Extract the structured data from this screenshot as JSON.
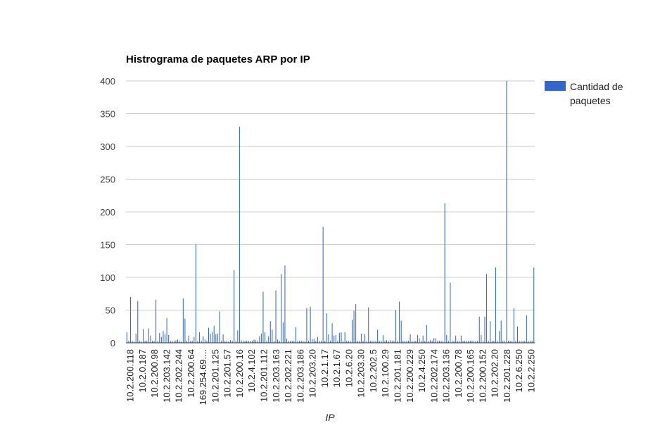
{
  "chart_data": {
    "type": "bar",
    "title": "Histrograma de paquetes ARP por IP",
    "xlabel": "IP",
    "ylabel": "",
    "ylim": [
      0,
      400
    ],
    "yticks": [
      0,
      50,
      100,
      150,
      200,
      250,
      300,
      350,
      400
    ],
    "grid": true,
    "legend_position": "right",
    "series": [
      {
        "name": "Cantidad de paquetes",
        "color": "#3366cc",
        "values": [
          16,
          3,
          70,
          3,
          2,
          14,
          64,
          3,
          2,
          21,
          3,
          3,
          22,
          11,
          3,
          3,
          66,
          3,
          15,
          9,
          18,
          13,
          38,
          12,
          3,
          3,
          3,
          4,
          5,
          3,
          2,
          68,
          37,
          3,
          11,
          3,
          3,
          9,
          151,
          3,
          16,
          3,
          10,
          5,
          3,
          23,
          14,
          17,
          26,
          13,
          14,
          48,
          3,
          13,
          3,
          3,
          2,
          4,
          3,
          111,
          3,
          19,
          330,
          4,
          3,
          3,
          3,
          3,
          3,
          3,
          5,
          4,
          3,
          10,
          14,
          78,
          16,
          3,
          10,
          33,
          20,
          3,
          80,
          5,
          3,
          105,
          31,
          118,
          6,
          3,
          3,
          3,
          3,
          24,
          3,
          3,
          3,
          3,
          3,
          53,
          3,
          55,
          6,
          6,
          3,
          9,
          3,
          3,
          177,
          3,
          45,
          13,
          3,
          30,
          11,
          12,
          3,
          15,
          16,
          3,
          16,
          3,
          3,
          3,
          35,
          49,
          59,
          3,
          3,
          14,
          3,
          13,
          3,
          54,
          3,
          3,
          3,
          3,
          20,
          3,
          3,
          12,
          3,
          4,
          3,
          4,
          3,
          3,
          50,
          3,
          63,
          34,
          3,
          3,
          3,
          3,
          13,
          3,
          3,
          3,
          12,
          7,
          3,
          11,
          3,
          27,
          3,
          4,
          3,
          7,
          7,
          3,
          3,
          3,
          3,
          213,
          12,
          3,
          92,
          3,
          3,
          11,
          3,
          3,
          11,
          3,
          3,
          3,
          3,
          3,
          3,
          3,
          3,
          3,
          40,
          12,
          3,
          40,
          105,
          3,
          33,
          3,
          3,
          115,
          3,
          18,
          34,
          3,
          3,
          400,
          3,
          3,
          3,
          53,
          3,
          25,
          3,
          3,
          3,
          3,
          42,
          3,
          3,
          3,
          115
        ]
      }
    ],
    "x_tick_labels": [
      "10.2.200.118",
      "10.2.0.187",
      "10.2.200.98",
      "10.2.203.142",
      "10.2.202.244",
      "10.2.200.64",
      "169.254.69....",
      "10.2.201.125",
      "10.2.201.57",
      "10.2.200.16",
      "10.2.4.102",
      "10.2.201.112",
      "10.2.203.163",
      "10.2.202.221",
      "10.2.203.186",
      "10.2.203.20",
      "10.2.1.17",
      "10.2.1.67",
      "10.2.6.20",
      "10.2.203.30",
      "10.2.202.5",
      "10.2.100.29",
      "10.2.201.181",
      "10.2.200.229",
      "10.2.4.250",
      "10.2.202.174",
      "10.2.203.136",
      "10.2.200.78",
      "10.2.200.165",
      "10.2.200.152",
      "10.2.202.20",
      "10.2.201.228",
      "10.2.6.250",
      "10.2.2.250"
    ]
  }
}
